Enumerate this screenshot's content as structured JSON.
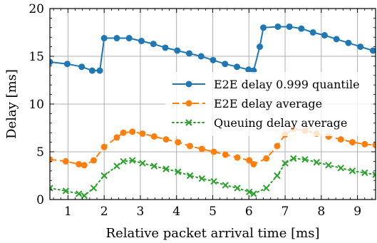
{
  "chart_data": {
    "type": "line",
    "xlabel": "Relative packet arrival time [ms]",
    "ylabel": "Delay [ms]",
    "xlim": [
      0.5,
      9.5
    ],
    "ylim": [
      0,
      20
    ],
    "xticks": [
      1,
      2,
      3,
      4,
      5,
      6,
      7,
      8,
      9
    ],
    "yticks": [
      0,
      5,
      10,
      15,
      20
    ],
    "grid": true,
    "legend_position": "center-right",
    "series": [
      {
        "name": "E2E delay 0.999 quantile",
        "color": "#1f77b4",
        "style": "solid",
        "marker": "circle",
        "points": [
          [
            0.5,
            14.4
          ],
          [
            0.98,
            14.2
          ],
          [
            1.38,
            13.9
          ],
          [
            1.67,
            13.5
          ],
          [
            1.88,
            13.5
          ],
          [
            2.0,
            16.9
          ],
          [
            2.35,
            16.9
          ],
          [
            2.69,
            16.9
          ],
          [
            3.03,
            16.6
          ],
          [
            3.36,
            16.3
          ],
          [
            3.69,
            15.9
          ],
          [
            4.02,
            15.6
          ],
          [
            4.35,
            15.3
          ],
          [
            4.68,
            15.0
          ],
          [
            5.01,
            14.6
          ],
          [
            5.34,
            14.2
          ],
          [
            5.67,
            13.9
          ],
          [
            5.99,
            13.6
          ],
          [
            6.13,
            13.5
          ],
          [
            6.3,
            16.0
          ],
          [
            6.4,
            18.0
          ],
          [
            6.8,
            18.1
          ],
          [
            7.12,
            18.1
          ],
          [
            7.45,
            17.9
          ],
          [
            7.77,
            17.5
          ],
          [
            8.09,
            17.2
          ],
          [
            8.42,
            16.8
          ],
          [
            8.75,
            16.4
          ],
          [
            9.08,
            16.0
          ],
          [
            9.43,
            15.6
          ]
        ]
      },
      {
        "name": "E2E delay average",
        "color": "#ff7f0e",
        "style": "dashed",
        "marker": "circle",
        "points": [
          [
            0.5,
            4.2
          ],
          [
            0.94,
            4.0
          ],
          [
            1.3,
            3.7
          ],
          [
            1.45,
            3.6
          ],
          [
            1.71,
            4.1
          ],
          [
            2.0,
            5.5
          ],
          [
            2.35,
            6.5
          ],
          [
            2.53,
            7.0
          ],
          [
            2.78,
            7.1
          ],
          [
            3.06,
            6.9
          ],
          [
            3.38,
            6.6
          ],
          [
            3.71,
            6.3
          ],
          [
            4.04,
            6.0
          ],
          [
            4.37,
            5.6
          ],
          [
            4.7,
            5.3
          ],
          [
            5.03,
            5.0
          ],
          [
            5.35,
            4.7
          ],
          [
            5.68,
            4.4
          ],
          [
            6.01,
            4.1
          ],
          [
            6.13,
            3.7
          ],
          [
            6.48,
            4.3
          ],
          [
            6.78,
            5.6
          ],
          [
            7.0,
            6.8
          ],
          [
            7.23,
            7.4
          ],
          [
            7.55,
            7.2
          ],
          [
            7.87,
            6.9
          ],
          [
            8.2,
            6.6
          ],
          [
            8.54,
            6.3
          ],
          [
            8.86,
            6.0
          ],
          [
            9.2,
            5.8
          ],
          [
            9.5,
            5.7
          ]
        ]
      },
      {
        "name": "Queuing delay average",
        "color": "#2ca02c",
        "style": "dotted",
        "marker": "x",
        "points": [
          [
            0.5,
            1.2
          ],
          [
            0.94,
            0.9
          ],
          [
            1.3,
            0.6
          ],
          [
            1.45,
            0.4
          ],
          [
            1.71,
            1.2
          ],
          [
            2.0,
            2.5
          ],
          [
            2.35,
            3.5
          ],
          [
            2.53,
            4.0
          ],
          [
            2.78,
            4.1
          ],
          [
            3.06,
            3.8
          ],
          [
            3.38,
            3.5
          ],
          [
            3.71,
            3.2
          ],
          [
            4.04,
            2.9
          ],
          [
            4.37,
            2.5
          ],
          [
            4.7,
            2.2
          ],
          [
            5.03,
            1.9
          ],
          [
            5.35,
            1.5
          ],
          [
            5.68,
            1.2
          ],
          [
            6.01,
            0.8
          ],
          [
            6.13,
            0.6
          ],
          [
            6.48,
            1.2
          ],
          [
            6.78,
            2.5
          ],
          [
            7.0,
            3.8
          ],
          [
            7.23,
            4.3
          ],
          [
            7.55,
            4.2
          ],
          [
            7.87,
            3.9
          ],
          [
            8.2,
            3.6
          ],
          [
            8.54,
            3.3
          ],
          [
            8.86,
            3.0
          ],
          [
            9.2,
            2.8
          ],
          [
            9.5,
            2.6
          ]
        ]
      }
    ]
  }
}
